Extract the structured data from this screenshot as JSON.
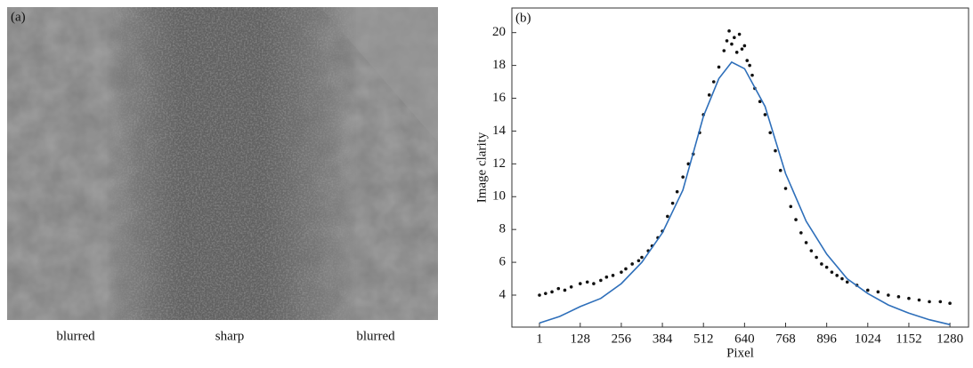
{
  "image_panel": {
    "label": "(a)",
    "captions": [
      "blurred",
      "sharp",
      "blurred"
    ]
  },
  "chart_data": {
    "type": "scatter",
    "label": "(b)",
    "x_label": "Pixel",
    "y_label": "Image clarity",
    "xlim": [
      -85,
      1338
    ],
    "ylim": [
      2.05,
      21.5
    ],
    "xticks": [
      1,
      128,
      256,
      384,
      512,
      640,
      768,
      896,
      1024,
      1152,
      1280
    ],
    "yticks": [
      4,
      6,
      8,
      10,
      12,
      14,
      16,
      18,
      20
    ],
    "series": [
      {
        "type": "scatter",
        "color": "#111111",
        "x": [
          1,
          20,
          40,
          60,
          80,
          100,
          128,
          150,
          170,
          192,
          210,
          230,
          256,
          270,
          290,
          310,
          320,
          340,
          352,
          370,
          384,
          400,
          416,
          430,
          448,
          465,
          480,
          500,
          512,
          530,
          544,
          560,
          576,
          585,
          592,
          600,
          608,
          616,
          624,
          632,
          640,
          648,
          656,
          664,
          672,
          688,
          704,
          720,
          736,
          752,
          768,
          784,
          800,
          816,
          832,
          848,
          864,
          880,
          896,
          912,
          928,
          944,
          960,
          990,
          1024,
          1056,
          1088,
          1120,
          1152,
          1184,
          1216,
          1250,
          1280
        ],
        "values": [
          4.0,
          4.1,
          4.2,
          4.4,
          4.3,
          4.5,
          4.7,
          4.8,
          4.7,
          4.9,
          5.1,
          5.2,
          5.4,
          5.6,
          5.9,
          6.1,
          6.3,
          6.7,
          7.0,
          7.5,
          7.9,
          8.8,
          9.6,
          10.3,
          11.2,
          12.0,
          12.6,
          13.9,
          15.0,
          16.2,
          17.0,
          17.9,
          18.9,
          19.5,
          20.1,
          19.3,
          19.7,
          18.8,
          19.9,
          19.0,
          19.2,
          18.3,
          18.0,
          17.4,
          16.6,
          15.8,
          15.0,
          13.9,
          12.8,
          11.6,
          10.5,
          9.4,
          8.6,
          7.8,
          7.2,
          6.7,
          6.3,
          5.9,
          5.7,
          5.4,
          5.2,
          5.0,
          4.8,
          4.6,
          4.3,
          4.2,
          4.0,
          3.9,
          3.8,
          3.7,
          3.6,
          3.6,
          3.5
        ]
      },
      {
        "type": "line",
        "color": "#2e6fba",
        "x": [
          1,
          64,
          128,
          192,
          256,
          320,
          384,
          448,
          512,
          560,
          600,
          640,
          704,
          768,
          832,
          896,
          960,
          1024,
          1088,
          1152,
          1216,
          1280
        ],
        "values": [
          2.3,
          2.7,
          3.3,
          3.8,
          4.7,
          6.0,
          7.8,
          10.4,
          14.9,
          17.2,
          18.2,
          17.8,
          15.5,
          11.4,
          8.5,
          6.5,
          5.0,
          4.1,
          3.4,
          2.9,
          2.5,
          2.2
        ]
      }
    ]
  }
}
